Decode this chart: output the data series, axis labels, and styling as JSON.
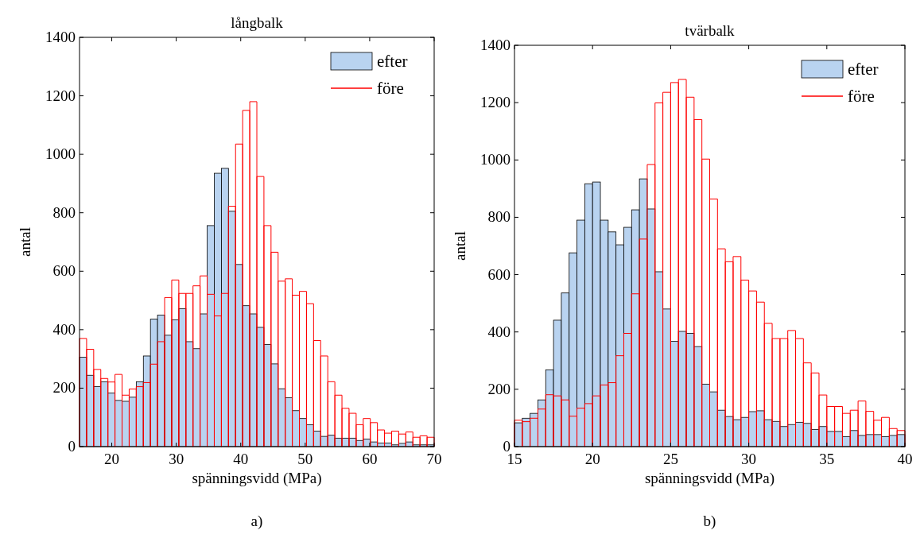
{
  "chart_data": [
    {
      "type": "histogram",
      "title": "långbalk",
      "xlabel": "spänningsvidd (MPa)",
      "ylabel": "antal",
      "annotations": [
        "a)"
      ],
      "bins": [
        15,
        16.1,
        17.2,
        18.3,
        19.4,
        20.5,
        21.6,
        22.7,
        23.8,
        24.9,
        26,
        27.1,
        28.2,
        29.3,
        30.4,
        31.5,
        32.6,
        33.7,
        34.8,
        35.9,
        37,
        38.1,
        39.2,
        40.3,
        41.4,
        42.5,
        43.6,
        44.7,
        45.8,
        46.9,
        48,
        49.1,
        50.2,
        51.3,
        52.4,
        53.5,
        54.6,
        55.7,
        56.8,
        57.9,
        59,
        60.1,
        61.2,
        62.3,
        63.4,
        64.5,
        65.6,
        66.7,
        67.8,
        68.9,
        70
      ],
      "series": [
        {
          "name": "efter",
          "color": "#b9d3f0",
          "values": [
            306,
            244,
            205,
            222,
            183,
            158,
            155,
            169,
            222,
            310,
            436,
            450,
            381,
            434,
            472,
            359,
            335,
            454,
            756,
            935,
            952,
            805,
            623,
            482,
            454,
            408,
            349,
            283,
            198,
            167,
            123,
            96,
            75,
            53,
            35,
            39,
            29,
            29,
            29,
            21,
            26,
            16,
            12,
            12,
            6,
            11,
            16,
            6,
            6,
            6
          ]
        },
        {
          "name": "före",
          "color": "#ff0000",
          "values": [
            370,
            333,
            264,
            233,
            221,
            247,
            176,
            197,
            205,
            219,
            282,
            359,
            510,
            570,
            524,
            524,
            550,
            584,
            521,
            447,
            524,
            822,
            1035,
            1150,
            1180,
            924,
            756,
            665,
            566,
            574,
            518,
            531,
            489,
            363,
            310,
            222,
            176,
            131,
            114,
            75,
            96,
            82,
            57,
            46,
            53,
            43,
            50,
            32,
            37,
            32
          ]
        }
      ],
      "xlim": [
        15,
        70
      ],
      "xticks": [
        20,
        30,
        40,
        50,
        60,
        70
      ],
      "ylim": [
        0,
        1400
      ],
      "yticks": [
        0,
        200,
        400,
        600,
        800,
        1000,
        1200,
        1400
      ],
      "legend": "top right",
      "grid": false
    },
    {
      "type": "histogram",
      "title": "tvärbalk",
      "xlabel": "spänningsvidd (MPa)",
      "ylabel": "antal",
      "annotations": [
        "b)"
      ],
      "bins": [
        15,
        15.5,
        16,
        16.5,
        17,
        17.5,
        18,
        18.5,
        19,
        19.5,
        20,
        20.5,
        21,
        21.5,
        22,
        22.5,
        23,
        23.5,
        24,
        24.5,
        25,
        25.5,
        26,
        26.5,
        27,
        27.5,
        28,
        28.5,
        29,
        29.5,
        30,
        30.5,
        31,
        31.5,
        32,
        32.5,
        33,
        33.5,
        34,
        34.5,
        35,
        35.5,
        36,
        36.5,
        37,
        37.5,
        38,
        38.5,
        39,
        39.5,
        40
      ],
      "series": [
        {
          "name": "efter",
          "color": "#b9d3f0",
          "values": [
            83,
            99,
            116,
            163,
            268,
            441,
            536,
            676,
            790,
            917,
            923,
            790,
            749,
            704,
            765,
            826,
            934,
            829,
            610,
            480,
            367,
            402,
            395,
            349,
            218,
            191,
            127,
            105,
            94,
            102,
            122,
            125,
            94,
            88,
            70,
            77,
            85,
            81,
            60,
            70,
            53,
            53,
            35,
            56,
            39,
            42,
            42,
            35,
            39,
            42
          ]
        },
        {
          "name": "före",
          "color": "#ff0000",
          "values": [
            92,
            87,
            99,
            131,
            181,
            177,
            163,
            106,
            134,
            150,
            177,
            215,
            223,
            317,
            395,
            533,
            724,
            984,
            1199,
            1236,
            1270,
            1281,
            1219,
            1141,
            1003,
            864,
            690,
            645,
            663,
            581,
            543,
            504,
            430,
            377,
            377,
            405,
            377,
            292,
            257,
            180,
            140,
            140,
            116,
            127,
            159,
            123,
            92,
            102,
            63,
            56
          ]
        }
      ],
      "xlim": [
        15,
        40
      ],
      "xticks": [
        15,
        20,
        25,
        30,
        35,
        40
      ],
      "ylim": [
        0,
        1400
      ],
      "yticks": [
        0,
        200,
        400,
        600,
        800,
        1000,
        1200,
        1400
      ],
      "legend": "top right",
      "grid": false
    }
  ]
}
